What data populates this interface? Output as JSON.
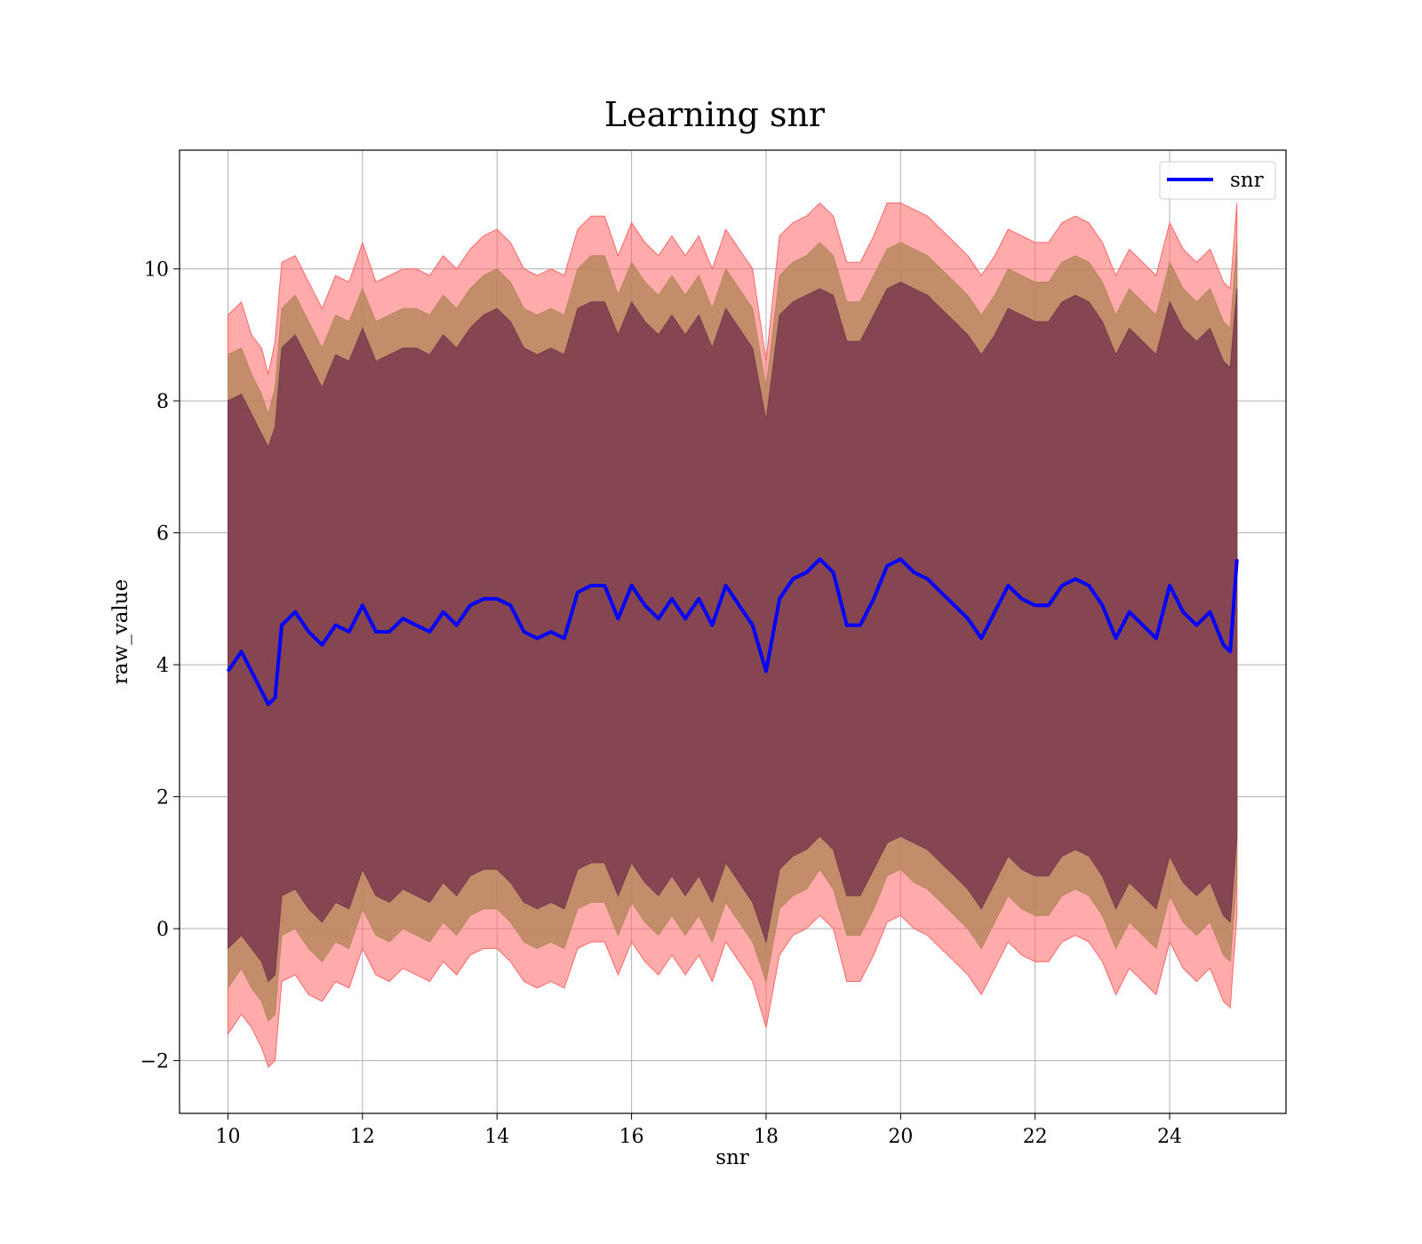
{
  "chart_data": {
    "type": "line",
    "title": "Learning snr",
    "xlabel": "snr",
    "ylabel": "raw_value",
    "xlim": [
      9.28,
      25.73
    ],
    "ylim": [
      -2.8,
      11.8
    ],
    "xticks": [
      10,
      12,
      14,
      16,
      18,
      20,
      22,
      24
    ],
    "xtick_labels": [
      "10",
      "12",
      "14",
      "16",
      "18",
      "20",
      "22",
      "24"
    ],
    "yticks": [
      -2,
      0,
      2,
      4,
      6,
      8,
      10
    ],
    "ytick_labels": [
      "−2",
      "0",
      "2",
      "4",
      "6",
      "8",
      "10"
    ],
    "grid": true,
    "legend": {
      "position": "top-right",
      "entries": [
        "snr"
      ]
    },
    "colors": {
      "line": "#0000ff",
      "band_outer": "#ff6666",
      "band_middle": "#b8865f",
      "band_inner": "#7a3a4e"
    },
    "series": [
      {
        "name": "snr",
        "x": [
          10.0,
          10.2,
          10.35,
          10.5,
          10.6,
          10.7,
          10.8,
          11.0,
          11.2,
          11.4,
          11.6,
          11.8,
          12.0,
          12.2,
          12.4,
          12.6,
          12.8,
          13.0,
          13.2,
          13.4,
          13.6,
          13.8,
          14.0,
          14.2,
          14.4,
          14.6,
          14.8,
          15.0,
          15.2,
          15.4,
          15.6,
          15.8,
          16.0,
          16.2,
          16.4,
          16.6,
          16.8,
          17.0,
          17.2,
          17.4,
          17.6,
          17.8,
          18.0,
          18.2,
          18.4,
          18.6,
          18.8,
          19.0,
          19.2,
          19.4,
          19.6,
          19.8,
          20.0,
          20.2,
          20.4,
          20.6,
          20.8,
          21.0,
          21.2,
          21.4,
          21.6,
          21.8,
          22.0,
          22.2,
          22.4,
          22.6,
          22.8,
          23.0,
          23.2,
          23.4,
          23.6,
          23.8,
          24.0,
          24.2,
          24.4,
          24.6,
          24.8,
          24.9,
          25.0
        ],
        "y": [
          3.9,
          4.2,
          3.9,
          3.6,
          3.4,
          3.5,
          4.6,
          4.8,
          4.5,
          4.3,
          4.6,
          4.5,
          4.9,
          4.5,
          4.5,
          4.7,
          4.6,
          4.5,
          4.8,
          4.6,
          4.9,
          5.0,
          5.0,
          4.9,
          4.5,
          4.4,
          4.5,
          4.4,
          5.1,
          5.2,
          5.2,
          4.7,
          5.2,
          4.9,
          4.7,
          5.0,
          4.7,
          5.0,
          4.6,
          5.2,
          4.9,
          4.6,
          3.9,
          5.0,
          5.3,
          5.4,
          5.6,
          5.4,
          4.6,
          4.6,
          5.0,
          5.5,
          5.6,
          5.4,
          5.3,
          5.1,
          4.9,
          4.7,
          4.4,
          4.8,
          5.2,
          5.0,
          4.9,
          4.9,
          5.2,
          5.3,
          5.2,
          4.9,
          4.4,
          4.8,
          4.6,
          4.4,
          5.2,
          4.8,
          4.6,
          4.8,
          4.3,
          4.2,
          5.6
        ]
      }
    ],
    "bands": [
      {
        "upper": [
          9.3,
          9.5,
          9.0,
          8.8,
          8.4,
          8.9,
          10.1,
          10.2,
          9.8,
          9.4,
          9.9,
          9.8,
          10.4,
          9.8,
          9.9,
          10.0,
          10.0,
          9.9,
          10.2,
          10.0,
          10.3,
          10.5,
          10.6,
          10.4,
          10.0,
          9.9,
          10.0,
          9.9,
          10.6,
          10.8,
          10.8,
          10.2,
          10.7,
          10.4,
          10.2,
          10.5,
          10.2,
          10.5,
          10.0,
          10.6,
          10.3,
          10.0,
          8.6,
          10.5,
          10.7,
          10.8,
          11.0,
          10.8,
          10.1,
          10.1,
          10.5,
          11.0,
          11.0,
          10.9,
          10.8,
          10.6,
          10.4,
          10.2,
          9.9,
          10.2,
          10.6,
          10.5,
          10.4,
          10.4,
          10.7,
          10.8,
          10.7,
          10.4,
          9.9,
          10.3,
          10.1,
          9.9,
          10.7,
          10.3,
          10.1,
          10.3,
          9.8,
          9.7,
          11.0
        ],
        "lower": [
          -1.6,
          -1.3,
          -1.5,
          -1.8,
          -2.1,
          -2.0,
          -0.8,
          -0.7,
          -1.0,
          -1.1,
          -0.8,
          -0.9,
          -0.3,
          -0.7,
          -0.8,
          -0.6,
          -0.7,
          -0.8,
          -0.5,
          -0.7,
          -0.4,
          -0.3,
          -0.3,
          -0.5,
          -0.8,
          -0.9,
          -0.8,
          -0.9,
          -0.3,
          -0.2,
          -0.2,
          -0.7,
          -0.2,
          -0.5,
          -0.7,
          -0.4,
          -0.7,
          -0.4,
          -0.8,
          -0.2,
          -0.5,
          -0.8,
          -1.5,
          -0.4,
          -0.1,
          0.0,
          0.2,
          0.0,
          -0.8,
          -0.8,
          -0.4,
          0.1,
          0.2,
          0.0,
          -0.1,
          -0.3,
          -0.5,
          -0.7,
          -1.0,
          -0.6,
          -0.2,
          -0.4,
          -0.5,
          -0.5,
          -0.2,
          -0.1,
          -0.2,
          -0.5,
          -1.0,
          -0.6,
          -0.8,
          -1.0,
          -0.2,
          -0.6,
          -0.8,
          -0.6,
          -1.1,
          -1.2,
          0.2
        ]
      },
      {
        "upper": [
          8.7,
          8.8,
          8.4,
          8.1,
          7.8,
          8.2,
          9.4,
          9.6,
          9.2,
          8.8,
          9.3,
          9.2,
          9.7,
          9.2,
          9.3,
          9.4,
          9.4,
          9.3,
          9.6,
          9.4,
          9.7,
          9.9,
          10.0,
          9.8,
          9.4,
          9.3,
          9.4,
          9.3,
          10.0,
          10.2,
          10.2,
          9.6,
          10.1,
          9.8,
          9.6,
          9.9,
          9.6,
          9.9,
          9.4,
          10.0,
          9.7,
          9.4,
          8.2,
          9.9,
          10.1,
          10.2,
          10.4,
          10.2,
          9.5,
          9.5,
          9.9,
          10.3,
          10.4,
          10.3,
          10.2,
          10.0,
          9.8,
          9.6,
          9.3,
          9.6,
          10.0,
          9.9,
          9.8,
          9.8,
          10.1,
          10.2,
          10.1,
          9.8,
          9.3,
          9.7,
          9.5,
          9.3,
          10.1,
          9.7,
          9.5,
          9.7,
          9.2,
          9.1,
          10.4
        ],
        "lower": [
          -0.9,
          -0.6,
          -0.9,
          -1.1,
          -1.4,
          -1.3,
          -0.1,
          0.0,
          -0.3,
          -0.5,
          -0.2,
          -0.3,
          0.3,
          -0.1,
          -0.2,
          0.0,
          -0.1,
          -0.2,
          0.1,
          -0.1,
          0.2,
          0.3,
          0.3,
          0.1,
          -0.2,
          -0.3,
          -0.2,
          -0.3,
          0.3,
          0.4,
          0.4,
          -0.1,
          0.4,
          0.1,
          -0.1,
          0.2,
          -0.1,
          0.2,
          -0.2,
          0.4,
          0.1,
          -0.2,
          -0.8,
          0.3,
          0.5,
          0.6,
          0.9,
          0.6,
          -0.1,
          -0.1,
          0.3,
          0.8,
          0.9,
          0.7,
          0.6,
          0.4,
          0.2,
          0.0,
          -0.3,
          0.1,
          0.5,
          0.3,
          0.2,
          0.2,
          0.5,
          0.6,
          0.5,
          0.2,
          -0.3,
          0.1,
          -0.1,
          -0.3,
          0.5,
          0.1,
          -0.1,
          0.1,
          -0.4,
          -0.5,
          0.8
        ]
      },
      {
        "upper": [
          8.0,
          8.1,
          7.8,
          7.5,
          7.3,
          7.6,
          8.8,
          9.0,
          8.6,
          8.2,
          8.7,
          8.6,
          9.1,
          8.6,
          8.7,
          8.8,
          8.8,
          8.7,
          9.0,
          8.8,
          9.1,
          9.3,
          9.4,
          9.2,
          8.8,
          8.7,
          8.8,
          8.7,
          9.4,
          9.5,
          9.5,
          9.0,
          9.5,
          9.2,
          9.0,
          9.3,
          9.0,
          9.3,
          8.8,
          9.4,
          9.1,
          8.8,
          7.7,
          9.3,
          9.5,
          9.6,
          9.7,
          9.6,
          8.9,
          8.9,
          9.3,
          9.7,
          9.8,
          9.7,
          9.6,
          9.4,
          9.2,
          9.0,
          8.7,
          9.0,
          9.4,
          9.3,
          9.2,
          9.2,
          9.5,
          9.6,
          9.5,
          9.2,
          8.7,
          9.1,
          8.9,
          8.7,
          9.5,
          9.1,
          8.9,
          9.1,
          8.6,
          8.5,
          9.7
        ],
        "lower": [
          -0.3,
          -0.1,
          -0.3,
          -0.5,
          -0.8,
          -0.7,
          0.5,
          0.6,
          0.3,
          0.1,
          0.4,
          0.3,
          0.9,
          0.5,
          0.4,
          0.6,
          0.5,
          0.4,
          0.7,
          0.5,
          0.8,
          0.9,
          0.9,
          0.7,
          0.4,
          0.3,
          0.4,
          0.3,
          0.9,
          1.0,
          1.0,
          0.5,
          1.0,
          0.7,
          0.5,
          0.8,
          0.5,
          0.8,
          0.4,
          1.0,
          0.7,
          0.4,
          -0.2,
          0.9,
          1.1,
          1.2,
          1.4,
          1.2,
          0.5,
          0.5,
          0.9,
          1.3,
          1.4,
          1.3,
          1.2,
          1.0,
          0.8,
          0.6,
          0.3,
          0.7,
          1.1,
          0.9,
          0.8,
          0.8,
          1.1,
          1.2,
          1.1,
          0.8,
          0.3,
          0.7,
          0.5,
          0.3,
          1.1,
          0.7,
          0.5,
          0.7,
          0.2,
          0.1,
          1.4
        ]
      }
    ]
  }
}
